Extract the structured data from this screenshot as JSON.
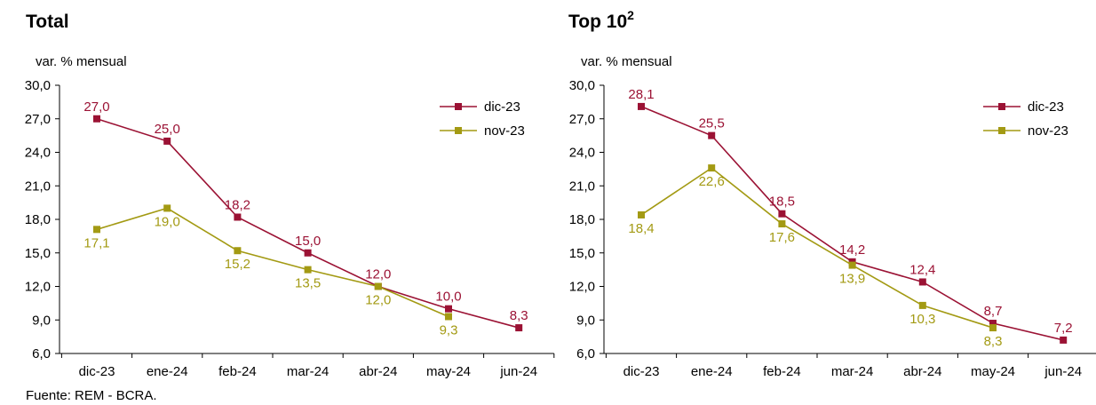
{
  "source": "Fuente: REM - BCRA.",
  "colors": {
    "dic23": "#9b1234",
    "nov23": "#a39a13",
    "axis": "#000000"
  },
  "chart_data": [
    {
      "type": "line",
      "title": "Total",
      "title_sup": "",
      "ylabel": "var. % mensual",
      "xlabel": "",
      "categories": [
        "dic-23",
        "ene-24",
        "feb-24",
        "mar-24",
        "abr-24",
        "may-24",
        "jun-24"
      ],
      "ylim": [
        6,
        30
      ],
      "yticks": [
        "6,0",
        "9,0",
        "12,0",
        "15,0",
        "18,0",
        "21,0",
        "24,0",
        "27,0",
        "30,0"
      ],
      "legend_position": "top-right",
      "series": [
        {
          "name": "dic-23",
          "values": [
            27.0,
            25.0,
            18.2,
            15.0,
            12.0,
            10.0,
            8.3
          ],
          "labels": [
            "27,0",
            "25,0",
            "18,2",
            "15,0",
            "12,0",
            "10,0",
            "8,3"
          ]
        },
        {
          "name": "nov-23",
          "values": [
            17.1,
            19.0,
            15.2,
            13.5,
            12.0,
            9.3,
            null
          ],
          "labels": [
            "17,1",
            "19,0",
            "15,2",
            "13,5",
            "12,0",
            "9,3",
            null
          ]
        }
      ]
    },
    {
      "type": "line",
      "title": "Top 10",
      "title_sup": "2",
      "ylabel": "var. % mensual",
      "xlabel": "",
      "categories": [
        "dic-23",
        "ene-24",
        "feb-24",
        "mar-24",
        "abr-24",
        "may-24",
        "jun-24"
      ],
      "ylim": [
        6,
        30
      ],
      "yticks": [
        "6,0",
        "9,0",
        "12,0",
        "15,0",
        "18,0",
        "21,0",
        "24,0",
        "27,0",
        "30,0"
      ],
      "legend_position": "top-right",
      "series": [
        {
          "name": "dic-23",
          "values": [
            28.1,
            25.5,
            18.5,
            14.2,
            12.4,
            8.7,
            7.2
          ],
          "labels": [
            "28,1",
            "25,5",
            "18,5",
            "14,2",
            "12,4",
            "8,7",
            "7,2"
          ]
        },
        {
          "name": "nov-23",
          "values": [
            18.4,
            22.6,
            17.6,
            13.9,
            10.3,
            8.3,
            null
          ],
          "labels": [
            "18,4",
            "22,6",
            "17,6",
            "13,9",
            "10,3",
            "8,3",
            null
          ]
        }
      ]
    }
  ]
}
